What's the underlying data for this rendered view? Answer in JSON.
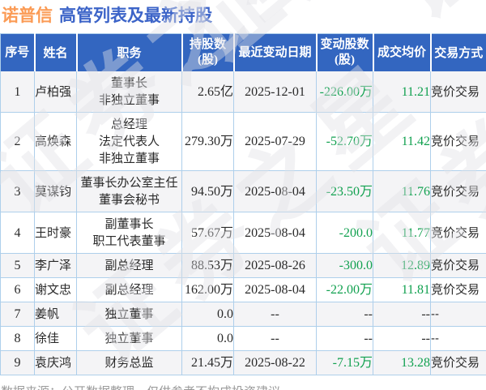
{
  "title": {
    "stock": "诺普信",
    "text": "高管列表及最新持股"
  },
  "chart_data": {
    "type": "table",
    "title": "诺普信 高管列表及最新持股",
    "columns": [
      "序号",
      "姓名",
      "职务",
      "持股数\n(股)",
      "最近变动日期",
      "变动股数\n(股)",
      "成交均价",
      "交易方式"
    ],
    "rows": [
      [
        "1",
        "卢柏强",
        "董事长\n非独立董事",
        "2.65亿",
        "2025-12-01",
        "-226.00万",
        "11.21",
        "竞价交易"
      ],
      [
        "2",
        "高焕森",
        "总经理\n法定代表人\n非独立董事",
        "279.30万",
        "2025-07-29",
        "-52.70万",
        "11.42",
        "竞价交易"
      ],
      [
        "3",
        "莫谋钧",
        "董事长办公室主任\n董事会秘书",
        "94.50万",
        "2025-08-04",
        "-23.50万",
        "11.76",
        "竞价交易"
      ],
      [
        "4",
        "王时豪",
        "副董事长\n职工代表董事",
        "57.67万",
        "2025-08-04",
        "-200.0",
        "11.77",
        "竞价交易"
      ],
      [
        "5",
        "李广泽",
        "副总经理",
        "88.53万",
        "2025-08-26",
        "-300.0",
        "12.89",
        "竞价交易"
      ],
      [
        "6",
        "谢文忠",
        "副总经理",
        "162.00万",
        "2025-08-04",
        "-22.00万",
        "11.81",
        "竞价交易"
      ],
      [
        "7",
        "姜帆",
        "独立董事",
        "0.0",
        "--",
        "--",
        "--",
        "--"
      ],
      [
        "8",
        "徐佳",
        "独立董事",
        "0.0",
        "--",
        "--",
        "--",
        "--"
      ],
      [
        "9",
        "袁庆鸿",
        "财务总监",
        "21.45万",
        "2025-08-22",
        "-7.15万",
        "13.28",
        "竞价交易"
      ]
    ],
    "note": "数据来源：公开数据整理，仅供参考不构成投资建议"
  },
  "footer": {
    "note": "数据来源：公开数据整理，仅供参考不构成投资建议"
  },
  "watermark": {
    "text": "证券之星"
  },
  "colors": {
    "title_stock": "#fb9b55",
    "title_text": "#3c64c8",
    "header_bg": "#3366c0",
    "header_text": "#ffffff",
    "border": "#aecfeb",
    "stripe": "#f4f4f6",
    "negative_green": "#12a150",
    "body_text": "#2a2a2a",
    "note_text": "#9b9b9b",
    "watermark": "#e2e2e7"
  }
}
